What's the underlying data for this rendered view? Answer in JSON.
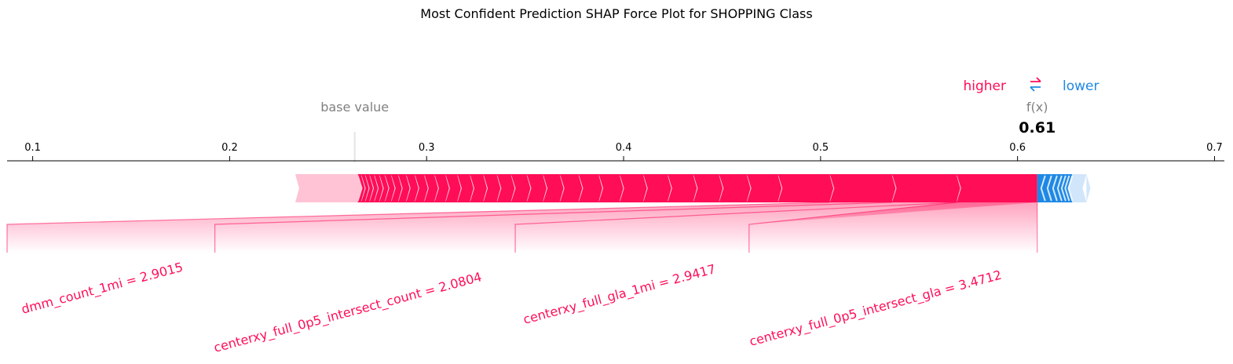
{
  "chart_data": {
    "type": "force",
    "title": "Most Confident Prediction SHAP Force Plot for SHOPPING Class",
    "xlim": [
      0.087,
      0.705
    ],
    "x_ticks": [
      "0.1",
      "0.2",
      "0.3",
      "0.4",
      "0.5",
      "0.6",
      "0.7"
    ],
    "base_value": 0.2635,
    "base_value_label": "base value",
    "output_value": 0.61,
    "output_label": "f(x)",
    "output_value_text": "0.61",
    "legend": {
      "higher": "higher",
      "lower": "lower",
      "arrows": "⇄"
    },
    "colors": {
      "positive": "#ff0d57",
      "negative": "#1e88e5",
      "positive_light": "#ffc3d5",
      "negative_light": "#d1e6fa",
      "axis": "#000000",
      "gray": "#808080"
    },
    "positive_segments": [
      {
        "start": 0.5689,
        "end": 0.61
      },
      {
        "start": 0.5361,
        "end": 0.5689
      },
      {
        "start": 0.5045,
        "end": 0.5361
      },
      {
        "start": 0.4782,
        "end": 0.5045
      },
      {
        "start": 0.4624,
        "end": 0.4782
      },
      {
        "start": 0.4483,
        "end": 0.4624
      },
      {
        "start": 0.4352,
        "end": 0.4483
      },
      {
        "start": 0.4222,
        "end": 0.4352
      },
      {
        "start": 0.4098,
        "end": 0.4222
      },
      {
        "start": 0.3978,
        "end": 0.4098
      },
      {
        "start": 0.3872,
        "end": 0.3978
      },
      {
        "start": 0.377,
        "end": 0.3872
      },
      {
        "start": 0.3675,
        "end": 0.377
      },
      {
        "start": 0.3589,
        "end": 0.3675
      },
      {
        "start": 0.3507,
        "end": 0.3589
      },
      {
        "start": 0.3427,
        "end": 0.3507
      },
      {
        "start": 0.3355,
        "end": 0.3427
      },
      {
        "start": 0.3286,
        "end": 0.3355
      },
      {
        "start": 0.3218,
        "end": 0.3286
      },
      {
        "start": 0.3154,
        "end": 0.3218
      },
      {
        "start": 0.3094,
        "end": 0.3154
      },
      {
        "start": 0.3038,
        "end": 0.3094
      },
      {
        "start": 0.2986,
        "end": 0.3038
      },
      {
        "start": 0.2938,
        "end": 0.2986
      },
      {
        "start": 0.2894,
        "end": 0.2938
      },
      {
        "start": 0.2854,
        "end": 0.2894
      },
      {
        "start": 0.2818,
        "end": 0.2854
      },
      {
        "start": 0.2786,
        "end": 0.2818
      },
      {
        "start": 0.2758,
        "end": 0.2786
      },
      {
        "start": 0.2732,
        "end": 0.2758
      },
      {
        "start": 0.2708,
        "end": 0.2732
      },
      {
        "start": 0.2686,
        "end": 0.2708
      },
      {
        "start": 0.2666,
        "end": 0.2686
      },
      {
        "start": 0.265,
        "end": 0.2666
      },
      {
        "start": 0.2333,
        "end": 0.265
      }
    ],
    "negative_segments": [
      {
        "start": 0.61,
        "end": 0.614
      },
      {
        "start": 0.614,
        "end": 0.6172
      },
      {
        "start": 0.6172,
        "end": 0.62
      },
      {
        "start": 0.62,
        "end": 0.6224
      },
      {
        "start": 0.6224,
        "end": 0.6244
      },
      {
        "start": 0.6244,
        "end": 0.6262
      },
      {
        "start": 0.6262,
        "end": 0.6278
      },
      {
        "start": 0.6278,
        "end": 0.635
      }
    ],
    "feature_labels": [
      {
        "text": "dmm_count_1mi = 2.9015",
        "seg_start": 0.5045,
        "seg_end": 0.5361,
        "drop_x": 0.087
      },
      {
        "text": "centerxy_full_0p5_intersect_count = 2.0804",
        "seg_start": 0.5361,
        "seg_end": 0.5689,
        "drop_x": 0.1925
      },
      {
        "text": "centerxy_full_gla_1mi = 2.9417",
        "seg_start": 0.5689,
        "seg_end": 0.61,
        "drop_x": 0.345
      },
      {
        "text": "centerxy_full_0p5_intersect_gla = 3.4712",
        "seg_start": 0.5689,
        "seg_end": 0.61,
        "drop_x": 0.4637
      }
    ]
  }
}
